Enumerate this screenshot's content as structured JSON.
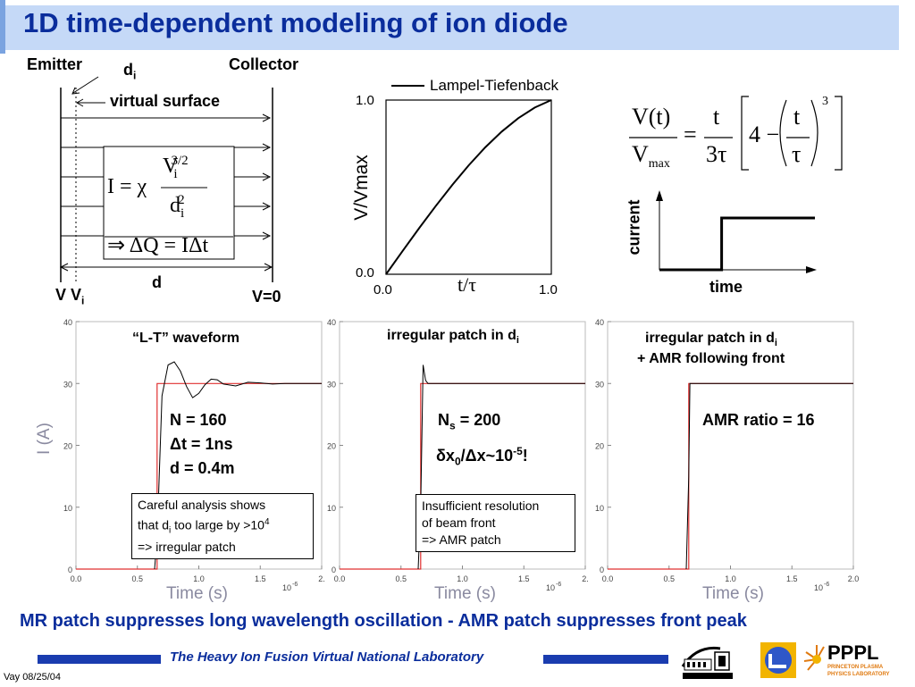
{
  "title": "1D time-dependent modeling of ion diode",
  "diode": {
    "emitter": "Emitter",
    "collector": "Collector",
    "di": "d",
    "di_sub": "i",
    "virtual_surface": "virtual surface",
    "formula_I": "I = χ",
    "formula_num": "V",
    "formula_num_sub": "i",
    "formula_num_sup": "3/2",
    "formula_den": "d",
    "formula_den_sub": "i",
    "formula_den_sup": "2",
    "formula_dq": "⇒ ΔQ = IΔt",
    "d_label": "d",
    "v_left": "V V",
    "v_left_sub": "i",
    "v_right": "V=0"
  },
  "lt_plot": {
    "legend": "Lampel-Tiefenback",
    "ylabel": "V/Vmax",
    "xlabel": "t/τ",
    "y_top": "1.0",
    "y_bottom": "0.0",
    "x_left": "0.0",
    "x_right": "1.0"
  },
  "equation": {
    "lhs_num": "V(t)",
    "lhs_den": "V",
    "lhs_den_sub": "max",
    "eq": "=",
    "f_num": "t",
    "f_den": "3τ",
    "inner": "4 −",
    "g_num": "t",
    "g_den": "τ",
    "power": "3"
  },
  "step_plot": {
    "ylabel": "current",
    "xlabel": "time"
  },
  "panels": [
    {
      "heading": "“L-T” waveform",
      "params": [
        "N = 160",
        "Δt = 1ns",
        "d = 0.4m"
      ],
      "note": [
        "Careful analysis shows",
        "that d",
        "i",
        " too large by >10",
        "4",
        "=> irregular patch"
      ]
    },
    {
      "heading": "irregular patch  in d",
      "heading_sub": "i",
      "param1": "N",
      "param1_sub": "s",
      "param1_rest": " = 200",
      "param2": "δx",
      "param2_sub": "0",
      "param2_rest": "/Δx~10",
      "param2_sup": "-5",
      "param2_end": "!",
      "note": [
        "Insufficient resolution",
        "of beam front",
        "=> AMR patch"
      ]
    },
    {
      "heading": "irregular patch  in d",
      "heading_sub": "i",
      "heading2": "+ AMR following front",
      "param": "AMR ratio = 16"
    }
  ],
  "panel_axis": {
    "ylabel": "I (A)",
    "xlabel": "Time (s)",
    "y_ticks": [
      "0",
      "10",
      "20",
      "30",
      "40"
    ],
    "x_ticks": [
      "0.0",
      "0.5",
      "1.0",
      "1.5",
      "2."
    ],
    "x_ticks_last": [
      "0.0",
      "0.5",
      "1.0",
      "1.5",
      "2.0"
    ],
    "x_exp": "10",
    "x_exp_sup": "-6"
  },
  "chart_data": [
    {
      "type": "line",
      "title": "",
      "xlabel": "t/τ",
      "ylabel": "V/Vmax",
      "xlim": [
        0,
        1
      ],
      "ylim": [
        0,
        1
      ],
      "series": [
        {
          "name": "Lampel-Tiefenback",
          "x": [
            0,
            0.1,
            0.2,
            0.3,
            0.4,
            0.5,
            0.6,
            0.7,
            0.8,
            0.9,
            1.0
          ],
          "y": [
            0,
            0.133,
            0.264,
            0.391,
            0.512,
            0.625,
            0.728,
            0.819,
            0.896,
            0.957,
            1.0
          ]
        }
      ]
    },
    {
      "type": "line",
      "title": "",
      "xlabel": "time",
      "ylabel": "current",
      "series": [
        {
          "x": [
            0,
            0.4,
            0.4,
            1.0
          ],
          "y": [
            0,
            0,
            1,
            1
          ]
        }
      ]
    },
    {
      "type": "line",
      "title": "“L-T” waveform",
      "xlabel": "Time (s)",
      "ylabel": "I (A)",
      "xlim": [
        0,
        2.0
      ],
      "ylim": [
        0,
        40
      ],
      "series": [
        {
          "color": "#e03030",
          "x": [
            0,
            0.66,
            0.66,
            2.0
          ],
          "y": [
            0,
            0,
            30,
            30
          ]
        },
        {
          "color": "#000000",
          "x": [
            0.64,
            0.66,
            0.7,
            0.75,
            0.8,
            0.85,
            0.9,
            0.95,
            1.0,
            1.05,
            1.1,
            1.15,
            1.2,
            1.3,
            1.4,
            1.5,
            1.6,
            1.7,
            1.8,
            2.0
          ],
          "y": [
            0,
            5,
            28,
            33,
            33.5,
            32,
            29.5,
            27.7,
            28.4,
            29.8,
            30.7,
            30.6,
            29.9,
            29.6,
            30.2,
            30.1,
            29.9,
            30.0,
            30.0,
            30.0
          ]
        }
      ]
    },
    {
      "type": "line",
      "title": "irregular patch  in d",
      "xlabel": "Time (s)",
      "ylabel": "I (A)",
      "xlim": [
        0,
        2.0
      ],
      "ylim": [
        0,
        40
      ],
      "series": [
        {
          "color": "#e03030",
          "x": [
            0,
            0.66,
            0.66,
            2.0
          ],
          "y": [
            0,
            0,
            30,
            30
          ]
        },
        {
          "color": "#000000",
          "x": [
            0.64,
            0.66,
            0.68,
            0.7,
            0.72,
            0.75,
            2.0
          ],
          "y": [
            0,
            10,
            33,
            30.5,
            30,
            30,
            30
          ]
        }
      ]
    },
    {
      "type": "line",
      "title": "irregular patch  in d",
      "xlabel": "Time (s)",
      "ylabel": "I (A)",
      "xlim": [
        0,
        2.0
      ],
      "ylim": [
        0,
        40
      ],
      "series": [
        {
          "color": "#e03030",
          "x": [
            0,
            0.66,
            0.66,
            2.0
          ],
          "y": [
            0,
            0,
            30,
            30
          ]
        },
        {
          "color": "#000000",
          "x": [
            0.64,
            0.66,
            0.67,
            2.0
          ],
          "y": [
            0,
            15,
            30,
            30
          ]
        }
      ]
    }
  ],
  "conclusion": "MR patch suppresses long wavelength oscillation - AMR patch suppresses front peak",
  "footer": "The Heavy Ion Fusion Virtual National Laboratory",
  "logos": [
    "BERKELEY LAB",
    "PPPL",
    "PRINCETON PLASMA PHYSICS LABORATORY"
  ],
  "date": "Vay 08/25/04",
  "colors": {
    "title": "#0a2d9c",
    "title_bg": "#c5d9f7",
    "theory": "#e03030",
    "sim": "#000000"
  }
}
